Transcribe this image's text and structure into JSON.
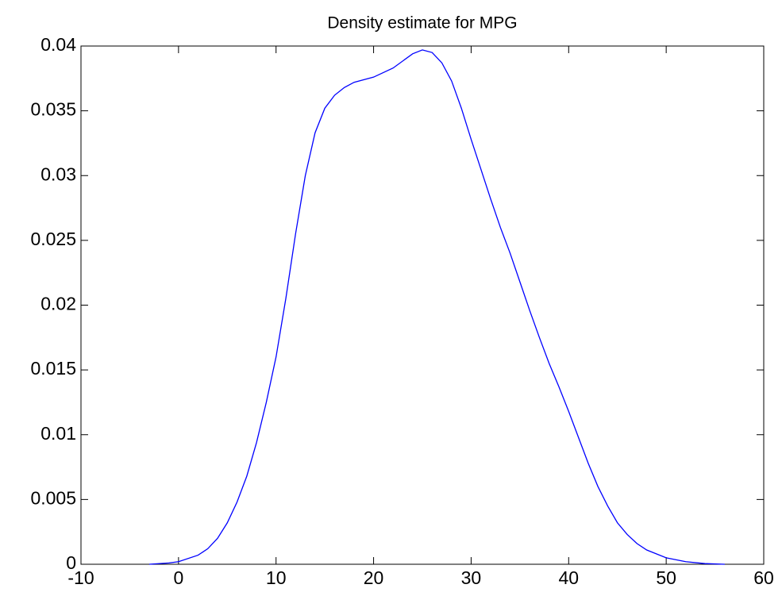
{
  "chart_data": {
    "type": "line",
    "title": "Density estimate for MPG",
    "x": [
      -3,
      -1,
      0,
      2,
      3,
      4,
      5,
      6,
      7,
      8,
      9,
      10,
      11,
      12,
      13,
      14,
      15,
      16,
      17,
      18,
      20,
      22,
      24,
      25,
      26,
      27,
      28,
      29,
      30,
      31,
      32,
      33,
      34,
      35,
      36,
      37,
      38,
      39,
      40,
      41,
      42,
      43,
      44,
      45,
      46,
      47,
      48,
      50,
      52,
      54,
      56
    ],
    "series": [
      {
        "color": "#0000ff",
        "values": [
          0,
          0.0001,
          0.0002,
          0.0007,
          0.0012,
          0.002,
          0.0032,
          0.0048,
          0.0068,
          0.0094,
          0.0125,
          0.016,
          0.0205,
          0.0255,
          0.03,
          0.0333,
          0.0352,
          0.0362,
          0.0368,
          0.0372,
          0.0376,
          0.0383,
          0.0394,
          0.0397,
          0.0395,
          0.0387,
          0.0373,
          0.0352,
          0.0328,
          0.0305,
          0.0282,
          0.026,
          0.024,
          0.0218,
          0.0196,
          0.0175,
          0.0155,
          0.0137,
          0.0118,
          0.0098,
          0.0078,
          0.006,
          0.0045,
          0.0032,
          0.0023,
          0.0016,
          0.0011,
          0.0005,
          0.0002,
          5e-05,
          0
        ]
      }
    ],
    "xlim": [
      -10,
      60
    ],
    "xticks": [
      -10,
      0,
      10,
      20,
      30,
      40,
      50,
      60
    ],
    "ylim": [
      0,
      0.04
    ],
    "yticks": [
      0,
      0.005,
      0.01,
      0.015,
      0.02,
      0.025,
      0.03,
      0.035,
      0.04
    ],
    "grid": false
  }
}
